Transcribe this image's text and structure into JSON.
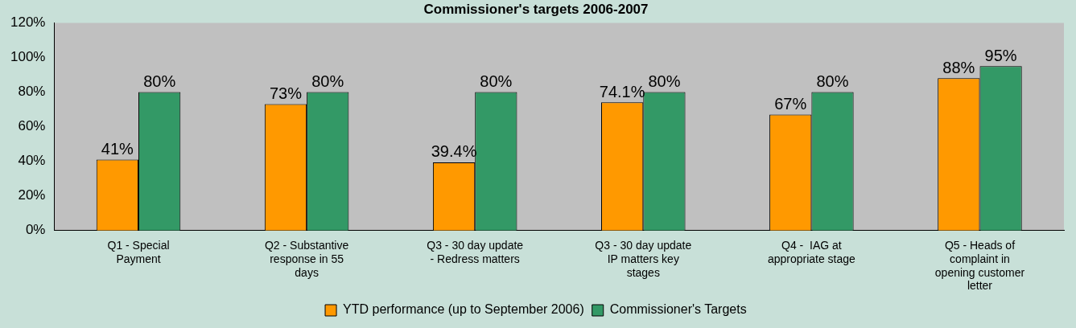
{
  "chart_data": {
    "type": "bar",
    "title": "Commissioner's targets 2006-2007",
    "categories": [
      "Q1 - Special Payment",
      "Q2 - Substantive response in 55 days",
      "Q3 - 30 day update - Redress matters",
      "Q3 - 30 day update IP matters key stages",
      "Q4 -  IAG at appropriate stage",
      "Q5 - Heads of complaint in opening customer letter"
    ],
    "series": [
      {
        "name": "YTD performance (up to September 2006)",
        "color": "#ff9900",
        "values": [
          41,
          73,
          39.4,
          74.1,
          67,
          88
        ],
        "value_labels": [
          "41%",
          "73%",
          "39.4%",
          "74.1%",
          "67%",
          "88%"
        ]
      },
      {
        "name": "Commissioner's Targets",
        "color": "#339966",
        "values": [
          80,
          80,
          80,
          80,
          80,
          95
        ],
        "value_labels": [
          "80%",
          "80%",
          "80%",
          "80%",
          "80%",
          "95%"
        ]
      }
    ],
    "ylim": [
      0,
      120
    ],
    "yticks": [
      {
        "value": 0,
        "label": "0%"
      },
      {
        "value": 20,
        "label": "20%"
      },
      {
        "value": 40,
        "label": "40%"
      },
      {
        "value": 60,
        "label": "60%"
      },
      {
        "value": 80,
        "label": "80%"
      },
      {
        "value": 100,
        "label": "100%"
      },
      {
        "value": 120,
        "label": "120%"
      }
    ],
    "grid": false,
    "legend": "bottom"
  }
}
